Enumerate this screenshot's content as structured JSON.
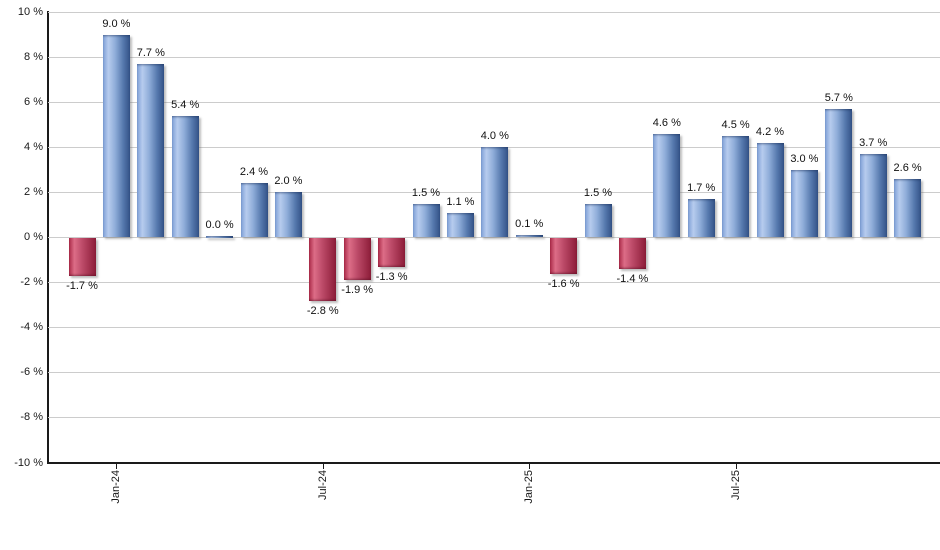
{
  "chart_data": {
    "type": "bar",
    "title": "",
    "xlabel": "",
    "ylabel": "",
    "ylim": [
      -10,
      10
    ],
    "y_tick_step": 2,
    "grid": true,
    "legend": null,
    "unit": "%",
    "colors": {
      "positive_bar": "#7ea0d6",
      "negative_bar": "#c04868",
      "gridline": "#cccccc",
      "axis": "#1a1a1a",
      "label_text": "#111111"
    },
    "values": [
      -1.7,
      9.0,
      7.7,
      5.4,
      0.0,
      2.4,
      2.0,
      -2.8,
      -1.9,
      -1.3,
      1.5,
      1.1,
      4.0,
      0.1,
      -1.6,
      1.5,
      -1.4,
      4.6,
      1.7,
      4.5,
      4.2,
      3.0,
      5.7,
      3.7,
      2.6
    ],
    "bar_labels": [
      "-1.7 %",
      "9.0 %",
      "7.7 %",
      "5.4 %",
      "0.0 %",
      "2.4 %",
      "2.0 %",
      "-2.8 %",
      "-1.9 %",
      "-1.3 %",
      "1.5 %",
      "1.1 %",
      "4.0 %",
      "0.1 %",
      "-1.6 %",
      "1.5 %",
      "-1.4 %",
      "4.6 %",
      "1.7 %",
      "4.5 %",
      "4.2 %",
      "3.0 %",
      "5.7 %",
      "3.7 %",
      "2.6 %"
    ],
    "y_tick_labels": [
      "10 %",
      "8 %",
      "6 %",
      "4 %",
      "2 %",
      "0 %",
      "-2 %",
      "-4 %",
      "-6 %",
      "-8 %",
      "-10 %"
    ],
    "x_ticks": [
      {
        "label": "Jan-24",
        "bar_index": 1
      },
      {
        "label": "Jul-24",
        "bar_index": 7
      },
      {
        "label": "Jan-25",
        "bar_index": 13
      },
      {
        "label": "Jul-25",
        "bar_index": 19
      }
    ]
  }
}
